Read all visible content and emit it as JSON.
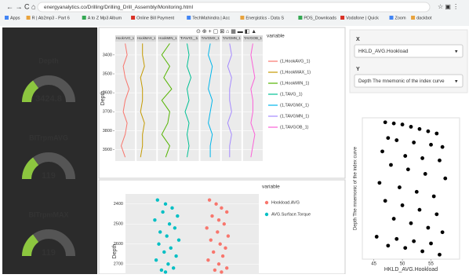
{
  "browser": {
    "url": "energyanalytics.co/Drilling/Drilling_Drill_Assembly/Monitoring.html",
    "bookmarks": [
      "Apps",
      "R | Ab2mp3 - Part 6",
      "A to Z Mp3 Album",
      "Online Bill Payment",
      "TechMahindra | Acc",
      "Energistics - Data S",
      "PDS_Downloads",
      "Vodafone | Quick",
      "Zoom",
      "dackbot"
    ]
  },
  "gauges": [
    {
      "label": "Depth",
      "value": "3424.8"
    },
    {
      "label": "BITrpmAVG",
      "value": "119"
    },
    {
      "label": "BITrpmMAX",
      "value": "119"
    }
  ],
  "facet_plot": {
    "y_label": "Depth",
    "legend_title": "variable",
    "ylim": [
      3330,
      3960
    ],
    "yticks": [
      3400,
      3500,
      3600,
      3700,
      3800,
      3900
    ],
    "xlim": [
      0,
      10
    ],
    "depths": [
      3340,
      3400,
      3460,
      3520,
      3580,
      3640,
      3700,
      3760,
      3820,
      3880,
      3940
    ],
    "series": [
      {
        "name": "(1,HookAVG_1)",
        "strip": "HookAVG_1",
        "color": "#f8766d",
        "values": [
          5,
          6,
          4,
          5,
          7,
          5,
          4,
          6,
          5,
          3,
          5
        ]
      },
      {
        "name": "(1,HookMAX_1)",
        "strip": "HookMAX_1",
        "color": "#c49a00",
        "values": [
          3,
          3,
          4,
          2,
          3,
          3,
          2,
          4,
          3,
          3,
          2
        ]
      },
      {
        "name": "(1,HookMIN_1)",
        "strip": "HookMIN_1",
        "color": "#53b400",
        "values": [
          6,
          2,
          6,
          3,
          7,
          2,
          6,
          5,
          2,
          6,
          4
        ]
      },
      {
        "name": "(1,TAVG_1)",
        "strip": "TAVG_1",
        "color": "#00c094",
        "values": [
          4,
          5,
          4,
          6,
          4,
          5,
          3,
          5,
          4,
          5,
          4
        ]
      },
      {
        "name": "(1,TAVGMX_1)",
        "strip": "TAVGMX_1",
        "color": "#00b6eb",
        "values": [
          5,
          4,
          6,
          5,
          4,
          6,
          5,
          4,
          6,
          5,
          5
        ]
      },
      {
        "name": "(1,TAVGMN_1)",
        "strip": "TAVGMN_1",
        "color": "#a58aff",
        "values": [
          4,
          5,
          3,
          5,
          4,
          4,
          5,
          3,
          5,
          4,
          4
        ]
      },
      {
        "name": "(1,TAVGOB_1)",
        "strip": "TAVGOB_1",
        "color": "#fb61d7",
        "values": [
          5,
          4,
          5,
          6,
          4,
          5,
          5,
          4,
          6,
          5,
          4
        ]
      }
    ]
  },
  "scatter_plot": {
    "y_label": "Depth",
    "legend_title": "variable",
    "ylim": [
      2350,
      2750
    ],
    "yticks": [
      2400,
      2500,
      2600,
      2700
    ],
    "xlim": [
      0,
      10
    ],
    "series": [
      {
        "name": "Hookload.AVG",
        "color": "#f8766d",
        "x": [
          6.3,
          6.8,
          7.2,
          7.6,
          6.5,
          7.0,
          7.4,
          6.1,
          6.9,
          7.7,
          6.4,
          7.1,
          7.5,
          6.6,
          7.3,
          6.2,
          7.0,
          7.6,
          6.7,
          7.2
        ],
        "y": [
          2380,
          2400,
          2420,
          2440,
          2460,
          2480,
          2500,
          2520,
          2540,
          2560,
          2580,
          2600,
          2620,
          2640,
          2660,
          2680,
          2700,
          2720,
          2730,
          2740
        ]
      },
      {
        "name": "AVG.Surface.Torque",
        "color": "#00bfc4",
        "x": [
          2.4,
          3.0,
          3.5,
          2.8,
          3.9,
          2.2,
          3.3,
          3.7,
          2.6,
          3.1,
          4.0,
          2.5,
          3.4,
          2.9,
          3.8,
          2.3,
          3.2,
          3.6,
          2.7,
          3.0
        ],
        "y": [
          2380,
          2400,
          2420,
          2440,
          2460,
          2480,
          2500,
          2520,
          2540,
          2560,
          2580,
          2600,
          2620,
          2640,
          2660,
          2680,
          2700,
          2720,
          2730,
          2740
        ]
      }
    ]
  },
  "selector": {
    "x_label": "X",
    "x_value": "HKLD_AVG.Hookload",
    "y_label": "Y",
    "y_value": "Depth The mnemonic of the index curve"
  },
  "xy_plot": {
    "x_label": "HKLD_AVG.Hookload",
    "y_label": "Depth The mnemonic of the index curve",
    "xlim": [
      43,
      60
    ],
    "xticks": [
      45,
      50,
      55
    ],
    "ylim": [
      3330,
      3960
    ],
    "color": "#000000",
    "x": [
      47,
      48.5,
      50,
      51.5,
      53,
      54.5,
      56,
      47.5,
      49,
      52,
      55,
      57,
      46.5,
      50.5,
      53.5,
      56.5,
      48,
      51,
      54,
      57.5,
      46,
      49.5,
      52.5,
      55.5,
      47,
      50,
      53,
      56,
      48.5,
      51.5,
      54.5,
      57,
      45.5,
      49,
      52,
      55,
      47.5,
      50.5,
      53.5,
      56.5
    ],
    "y": [
      3350,
      3355,
      3360,
      3370,
      3380,
      3390,
      3400,
      3420,
      3430,
      3440,
      3450,
      3460,
      3480,
      3500,
      3510,
      3520,
      3540,
      3560,
      3580,
      3600,
      3620,
      3640,
      3660,
      3680,
      3700,
      3720,
      3740,
      3760,
      3780,
      3800,
      3820,
      3840,
      3860,
      3870,
      3880,
      3890,
      3900,
      3910,
      3925,
      3940
    ]
  }
}
